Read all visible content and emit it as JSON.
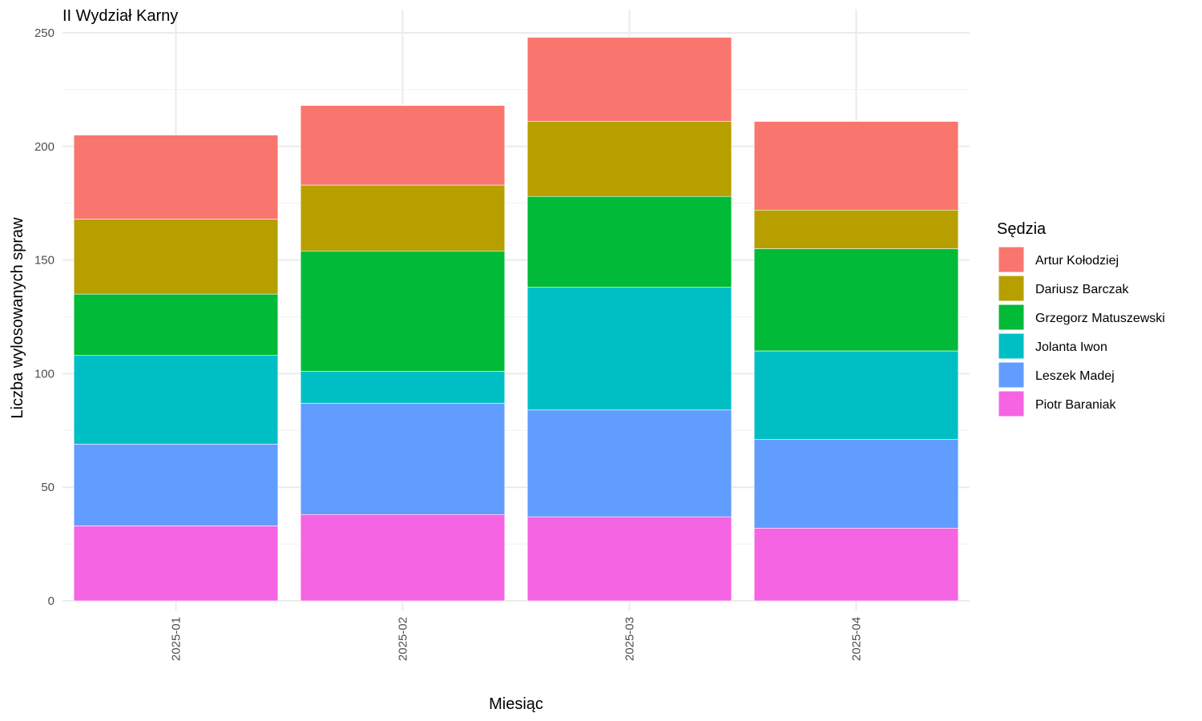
{
  "chart_data": {
    "type": "bar",
    "stacked": true,
    "title": "II Wydział Karny",
    "xlabel": "Miesiąc",
    "ylabel": "Liczba wylosowanych spraw",
    "ylim": [
      0,
      250
    ],
    "yticks": [
      0,
      50,
      100,
      150,
      200,
      250
    ],
    "grid": true,
    "legend_title": "Sędzia",
    "legend_position": "right",
    "categories": [
      "2025-01",
      "2025-02",
      "2025-03",
      "2025-04"
    ],
    "series": [
      {
        "name": "Artur Kołodziej",
        "color": "#F8766D",
        "values": [
          37,
          35,
          37,
          39
        ]
      },
      {
        "name": "Dariusz Barczak",
        "color": "#B79F00",
        "values": [
          33,
          29,
          33,
          17
        ]
      },
      {
        "name": "Grzegorz Matuszewski",
        "color": "#00BA38",
        "values": [
          27,
          53,
          40,
          45
        ]
      },
      {
        "name": "Jolanta Iwon",
        "color": "#00BFC4",
        "values": [
          39,
          14,
          54,
          39
        ]
      },
      {
        "name": "Leszek Madej",
        "color": "#619CFF",
        "values": [
          36,
          49,
          47,
          39
        ]
      },
      {
        "name": "Piotr Baraniak",
        "color": "#F564E3",
        "values": [
          33,
          38,
          37,
          32
        ]
      }
    ]
  }
}
